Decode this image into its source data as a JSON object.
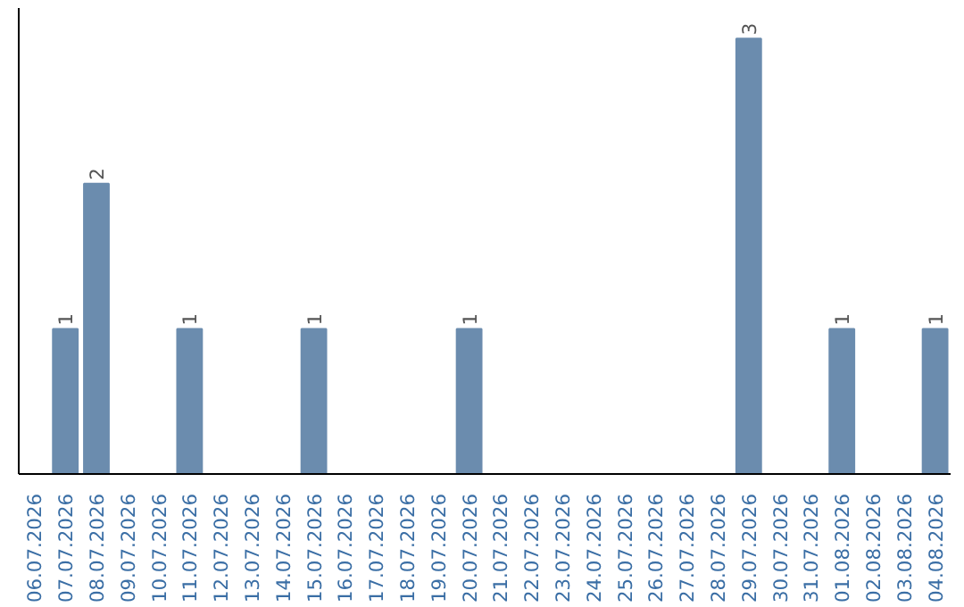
{
  "chart_data": {
    "type": "bar",
    "categories": [
      "06.07.2026",
      "07.07.2026",
      "08.07.2026",
      "09.07.2026",
      "10.07.2026",
      "11.07.2026",
      "12.07.2026",
      "13.07.2026",
      "14.07.2026",
      "15.07.2026",
      "16.07.2026",
      "17.07.2026",
      "18.07.2026",
      "19.07.2026",
      "20.07.2026",
      "21.07.2026",
      "22.07.2026",
      "23.07.2026",
      "24.07.2026",
      "25.07.2026",
      "26.07.2026",
      "27.07.2026",
      "28.07.2026",
      "29.07.2026",
      "30.07.2026",
      "31.07.2026",
      "01.08.2026",
      "02.08.2026",
      "03.08.2026",
      "04.08.2026"
    ],
    "values": [
      0,
      1,
      2,
      0,
      0,
      1,
      0,
      0,
      0,
      1,
      0,
      0,
      0,
      0,
      1,
      0,
      0,
      0,
      0,
      0,
      0,
      0,
      0,
      3,
      0,
      0,
      1,
      0,
      0,
      1
    ],
    "value_labels": [
      null,
      "1",
      "2",
      null,
      null,
      "1",
      null,
      null,
      null,
      "1",
      null,
      null,
      null,
      null,
      "1",
      null,
      null,
      null,
      null,
      null,
      null,
      null,
      null,
      "3",
      null,
      null,
      "1",
      null,
      null,
      "1"
    ],
    "color": "#6b8cae",
    "grid": false,
    "tick_labels": "x"
  }
}
